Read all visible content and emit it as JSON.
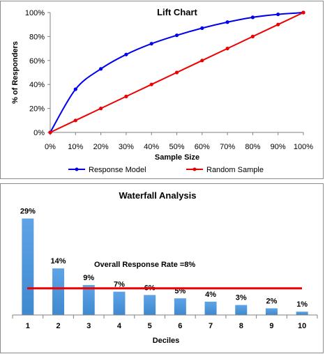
{
  "chart_data": [
    {
      "type": "line",
      "title": "Lift Chart",
      "xlabel": "Sample Size",
      "ylabel": "% of Responders",
      "x": [
        0,
        10,
        20,
        30,
        40,
        50,
        60,
        70,
        80,
        90,
        100
      ],
      "x_tick_labels": [
        "0%",
        "10%",
        "20%",
        "30%",
        "40%",
        "50%",
        "60%",
        "70%",
        "80%",
        "90%",
        "100%"
      ],
      "y_tick_labels": [
        "0%",
        "20%",
        "40%",
        "60%",
        "80%",
        "100%"
      ],
      "xlim": [
        0,
        100
      ],
      "ylim": [
        0,
        100
      ],
      "grid": false,
      "legend_position": "bottom",
      "series": [
        {
          "name": "Response Model",
          "color": "#0000ee",
          "values": [
            0,
            36,
            53,
            65,
            74,
            81,
            87,
            92,
            96,
            98.5,
            100
          ]
        },
        {
          "name": "Random Sample",
          "color": "#ee0000",
          "values": [
            0,
            10,
            20,
            30,
            40,
            50,
            60,
            70,
            80,
            90,
            100
          ]
        }
      ]
    },
    {
      "type": "bar",
      "title": "Waterfall Analysis",
      "xlabel": "Deciles",
      "categories": [
        "1",
        "2",
        "3",
        "4",
        "5",
        "6",
        "7",
        "8",
        "9",
        "10"
      ],
      "values": [
        29,
        14,
        9,
        7,
        6,
        5,
        4,
        3,
        2,
        1
      ],
      "data_labels": [
        "29%",
        "14%",
        "9%",
        "7%",
        "6%",
        "5%",
        "4%",
        "3%",
        "2%",
        "1%"
      ],
      "bar_color": "#3f89d0",
      "ylim": [
        0,
        31
      ],
      "reference_line": {
        "label": "Overall Response Rate =8%",
        "value": 8,
        "color": "#ee0000"
      }
    }
  ]
}
